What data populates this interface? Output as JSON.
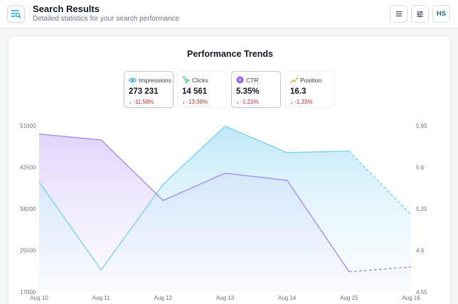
{
  "header": {
    "title": "Search Results",
    "subtitle": "Detailed statistics for your search performance",
    "app_icon": "search-list-icon",
    "menu_icon": "menu-icon",
    "filter_icon": "sliders-icon",
    "avatar_initials": "HS"
  },
  "card": {
    "title": "Performance Trends"
  },
  "metrics": [
    {
      "label": "Impressions",
      "value": "273 231",
      "delta": "-11.58%",
      "icon": "eye-icon",
      "color": "#0ea5e9",
      "selected": true
    },
    {
      "label": "Clicks",
      "value": "14 561",
      "delta": "-13.38%",
      "icon": "cursor-click-icon",
      "color": "#22c55e",
      "selected": false
    },
    {
      "label": "CTR",
      "value": "5.35%",
      "delta": "-1.21%",
      "icon": "percent-icon",
      "color": "#8b5cf6",
      "selected": true
    },
    {
      "label": "Position",
      "value": "16.3",
      "delta": "-1.33%",
      "icon": "trend-icon",
      "color": "#f59e0b",
      "selected": false
    }
  ],
  "chart_data": {
    "type": "area",
    "categories": [
      "Aug 10",
      "Aug 11",
      "Aug 12",
      "Aug 13",
      "Aug 14",
      "Aug 15",
      "Aug 16"
    ],
    "left_axis": {
      "ticks": [
        "51000",
        "42500",
        "34000",
        "25500",
        "17000"
      ],
      "range": [
        17000,
        51000
      ]
    },
    "right_axis": {
      "ticks": [
        "5.95",
        "5.6",
        "5.25",
        "4.9",
        "4.55"
      ],
      "range": [
        4.55,
        5.95
      ]
    },
    "series": [
      {
        "name": "Impressions",
        "axis": "left",
        "color": "#7dd3f0",
        "values": [
          39500,
          21500,
          39000,
          50900,
          45500,
          45800,
          32800
        ],
        "dashed_from": 5
      },
      {
        "name": "CTR",
        "axis": "right",
        "color": "#a78bfa",
        "values": [
          5.88,
          5.83,
          5.32,
          5.55,
          5.49,
          4.72,
          4.76
        ],
        "dashed_from": 5
      }
    ],
    "grid": false,
    "legend": "top-center"
  }
}
